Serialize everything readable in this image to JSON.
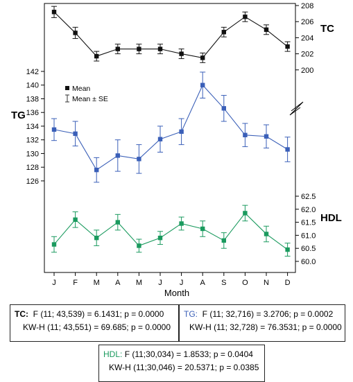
{
  "chart_data": {
    "type": "line",
    "xlabel": "Month",
    "categories": [
      "J",
      "F",
      "M",
      "A",
      "M",
      "J",
      "J",
      "A",
      "S",
      "O",
      "N",
      "D"
    ],
    "legend": {
      "placement": "top-left",
      "entries": [
        "Mean",
        "Mean ± SE"
      ]
    },
    "series": [
      {
        "name": "TC",
        "axis": "right-upper",
        "color": "#111111",
        "values": [
          207.2,
          204.6,
          201.7,
          202.6,
          202.6,
          202.6,
          202.0,
          201.5,
          204.7,
          206.6,
          205.0,
          202.9
        ],
        "se": [
          0.7,
          0.7,
          0.6,
          0.6,
          0.6,
          0.6,
          0.6,
          0.6,
          0.6,
          0.6,
          0.6,
          0.6
        ]
      },
      {
        "name": "TG",
        "axis": "left",
        "color": "#3a5fb8",
        "values": [
          133.5,
          132.9,
          127.6,
          129.7,
          129.2,
          132.1,
          133.2,
          140.0,
          136.6,
          132.7,
          132.5,
          130.6
        ],
        "se": [
          1.6,
          1.8,
          1.8,
          2.3,
          2.1,
          1.9,
          1.9,
          1.9,
          1.9,
          1.7,
          1.7,
          1.8
        ]
      },
      {
        "name": "HDL",
        "axis": "right-lower",
        "color": "#1a9a5e",
        "values": [
          60.65,
          61.6,
          60.9,
          61.5,
          60.6,
          60.9,
          61.45,
          61.25,
          60.8,
          61.85,
          61.05,
          60.45
        ],
        "se": [
          0.3,
          0.3,
          0.3,
          0.3,
          0.25,
          0.25,
          0.25,
          0.3,
          0.3,
          0.3,
          0.3,
          0.25
        ]
      }
    ],
    "axes": {
      "left": {
        "label": "TG",
        "ticks": [
          126,
          128,
          130,
          132,
          134,
          136,
          138,
          140,
          142
        ]
      },
      "right_upper": {
        "label": "TC",
        "ticks": [
          200,
          202,
          204,
          206,
          208
        ]
      },
      "right_lower": {
        "label": "HDL",
        "ticks": [
          "60.0",
          "60.5",
          "61.0",
          "61.5",
          "62.0",
          "62.5"
        ]
      }
    }
  },
  "stats": {
    "tc": {
      "label": "TC:",
      "f_line": "F (11; 43,539) = 6.1431;  p = 0.0000",
      "kw_line": "KW-H (11; 43,551) = 69.685; p = 0.0000"
    },
    "tg": {
      "label": "TG:",
      "f_line": "F (11; 32,716) = 3.2706;  p = 0.0002",
      "kw_line": "KW-H (11; 32,728) = 76.3531; p = 0.0000"
    },
    "hdl": {
      "label": "HDL:",
      "f_line": "F (11;30,034) = 1.8533;   p = 0.0404",
      "kw_line": "KW-H (11;30,046) = 20.5371; p = 0.0385"
    }
  }
}
